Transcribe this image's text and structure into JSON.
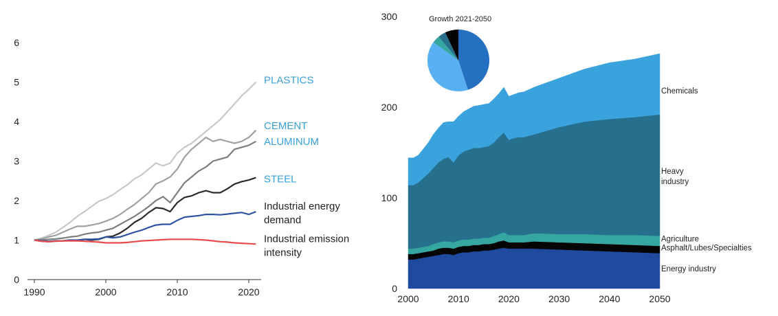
{
  "chart_data": [
    {
      "type": "line",
      "x": [
        1990,
        1991,
        1992,
        1993,
        1994,
        1995,
        1996,
        1997,
        1998,
        1999,
        2000,
        2001,
        2002,
        2003,
        2004,
        2005,
        2006,
        2007,
        2008,
        2009,
        2010,
        2011,
        2012,
        2013,
        2014,
        2015,
        2016,
        2017,
        2018,
        2019,
        2020,
        2021
      ],
      "xticks": [
        1990,
        2000,
        2010,
        2020
      ],
      "yticks": [
        0,
        1,
        2,
        3,
        4,
        5,
        6
      ],
      "xlim": [
        1989,
        2022
      ],
      "ylim": [
        0,
        6
      ],
      "series": [
        {
          "name": "PLASTICS",
          "color": "#c8c8c8",
          "label_color": "#3aa0d8",
          "label_y": 5.05,
          "values": [
            1.0,
            1.05,
            1.12,
            1.2,
            1.32,
            1.45,
            1.6,
            1.72,
            1.85,
            1.98,
            2.05,
            2.15,
            2.28,
            2.4,
            2.55,
            2.65,
            2.8,
            2.95,
            2.88,
            2.95,
            3.2,
            3.35,
            3.45,
            3.6,
            3.75,
            3.9,
            4.05,
            4.25,
            4.45,
            4.65,
            4.82,
            5.0
          ]
        },
        {
          "name": "CEMENT",
          "color": "#a0a0a0",
          "label_color": "#3aa0d8",
          "label_y": 3.9,
          "values": [
            1.0,
            1.03,
            1.08,
            1.12,
            1.2,
            1.28,
            1.35,
            1.35,
            1.38,
            1.42,
            1.48,
            1.55,
            1.65,
            1.78,
            1.9,
            2.05,
            2.2,
            2.42,
            2.5,
            2.6,
            2.8,
            3.1,
            3.3,
            3.45,
            3.6,
            3.5,
            3.55,
            3.5,
            3.45,
            3.5,
            3.6,
            3.78
          ]
        },
        {
          "name": "ALUMINUM",
          "color": "#7d7d7d",
          "label_color": "#3aa0d8",
          "label_y": 3.5,
          "values": [
            1.0,
            1.0,
            1.02,
            1.03,
            1.05,
            1.08,
            1.1,
            1.15,
            1.18,
            1.2,
            1.25,
            1.3,
            1.4,
            1.5,
            1.6,
            1.72,
            1.85,
            2.0,
            2.1,
            1.95,
            2.2,
            2.45,
            2.6,
            2.75,
            2.85,
            3.0,
            3.05,
            3.1,
            3.3,
            3.35,
            3.4,
            3.5
          ]
        },
        {
          "name": "STEEL",
          "color": "#2a2a2a",
          "label_color": "#3aa0d8",
          "label_y": 2.55,
          "values": [
            1.0,
            0.97,
            0.96,
            0.98,
            0.98,
            1.0,
            0.99,
            1.02,
            1.0,
            1.02,
            1.08,
            1.1,
            1.18,
            1.3,
            1.45,
            1.55,
            1.7,
            1.82,
            1.8,
            1.72,
            1.95,
            2.08,
            2.12,
            2.2,
            2.25,
            2.2,
            2.2,
            2.3,
            2.42,
            2.48,
            2.52,
            2.58
          ]
        },
        {
          "name": "Industrial energy demand",
          "label_lines": [
            "Industrial energy",
            "demand"
          ],
          "color": "#2f53a3",
          "label_color": "#222222",
          "label_y": 1.72,
          "values": [
            1.0,
            0.98,
            0.97,
            0.98,
            0.98,
            1.0,
            1.0,
            1.02,
            1.02,
            1.03,
            1.08,
            1.06,
            1.08,
            1.14,
            1.2,
            1.25,
            1.32,
            1.38,
            1.4,
            1.4,
            1.5,
            1.58,
            1.6,
            1.62,
            1.65,
            1.65,
            1.64,
            1.66,
            1.68,
            1.7,
            1.65,
            1.72
          ]
        },
        {
          "name": "Industrial emission intensity",
          "label_lines": [
            "Industrial emission",
            "intensity"
          ],
          "color": "#e84b4b",
          "label_color": "#222222",
          "label_y": 0.9,
          "values": [
            1.0,
            0.97,
            0.96,
            0.97,
            0.98,
            0.98,
            0.98,
            0.97,
            0.96,
            0.95,
            0.93,
            0.93,
            0.93,
            0.94,
            0.96,
            0.98,
            0.99,
            1.0,
            1.01,
            1.02,
            1.02,
            1.02,
            1.02,
            1.01,
            1.0,
            0.98,
            0.96,
            0.95,
            0.93,
            0.92,
            0.91,
            0.9
          ]
        }
      ]
    },
    {
      "type": "area",
      "stacked": true,
      "x": [
        2000,
        2001,
        2002,
        2003,
        2004,
        2005,
        2006,
        2007,
        2008,
        2009,
        2010,
        2011,
        2012,
        2013,
        2014,
        2015,
        2016,
        2017,
        2018,
        2019,
        2020,
        2021,
        2022,
        2023,
        2025,
        2030,
        2035,
        2040,
        2045,
        2050
      ],
      "xticks": [
        2000,
        2010,
        2020,
        2030,
        2040,
        2050
      ],
      "yticks": [
        0,
        100,
        200,
        300
      ],
      "xlim": [
        2000,
        2050
      ],
      "ylim": [
        0,
        300
      ],
      "series": [
        {
          "name": "Energy industry",
          "color": "#1f4a9e",
          "label_y": 22,
          "values": [
            32,
            32,
            33,
            34,
            35,
            36,
            37,
            38,
            38,
            37,
            39,
            40,
            40,
            41,
            41,
            42,
            42,
            43,
            44,
            45,
            44,
            44,
            44,
            44,
            44,
            43,
            42,
            41,
            40,
            39
          ]
        },
        {
          "name": "Asphalt/Lubes/Specialties",
          "color": "#050505",
          "label_y": 45,
          "values": [
            6,
            6,
            6,
            6,
            6,
            6,
            7,
            7,
            7,
            7,
            7,
            7,
            7,
            7,
            7,
            7,
            7,
            7,
            8,
            8,
            7,
            7,
            7,
            7,
            8,
            8,
            8,
            8,
            8,
            8
          ]
        },
        {
          "name": "Agriculture",
          "color": "#35a6a0",
          "label_y": 55,
          "values": [
            6,
            6,
            6,
            6,
            6,
            7,
            7,
            7,
            7,
            7,
            7,
            7,
            7,
            7,
            7,
            7,
            7,
            8,
            8,
            9,
            8,
            8,
            8,
            8,
            9,
            9,
            10,
            10,
            11,
            11
          ]
        },
        {
          "name": "Heavy industry",
          "label_lines": [
            "Heavy",
            "industry"
          ],
          "color": "#26708d",
          "label_y": 125,
          "values": [
            70,
            70,
            72,
            76,
            80,
            84,
            88,
            91,
            93,
            88,
            94,
            97,
            99,
            100,
            100,
            100,
            101,
            103,
            107,
            110,
            105,
            107,
            108,
            108,
            109,
            118,
            124,
            128,
            130,
            134
          ]
        },
        {
          "name": "Chemicals",
          "color": "#3aa2dc",
          "label_y": 218,
          "values": [
            30,
            30,
            30,
            32,
            34,
            37,
            38,
            40,
            39,
            45,
            43,
            44,
            45,
            46,
            47,
            47,
            47,
            48,
            48,
            50,
            48,
            48,
            49,
            50,
            52,
            54,
            58,
            62,
            64,
            67
          ]
        }
      ],
      "pie": {
        "title": "Growth 2021-2050",
        "slices": [
          {
            "value": 0.45,
            "color": "#2670c2"
          },
          {
            "value": 0.4,
            "color": "#58b0f2"
          },
          {
            "value": 0.04,
            "color": "#35a6a0"
          },
          {
            "value": 0.04,
            "color": "#26708d"
          },
          {
            "value": 0.07,
            "color": "#050505"
          }
        ]
      }
    }
  ]
}
